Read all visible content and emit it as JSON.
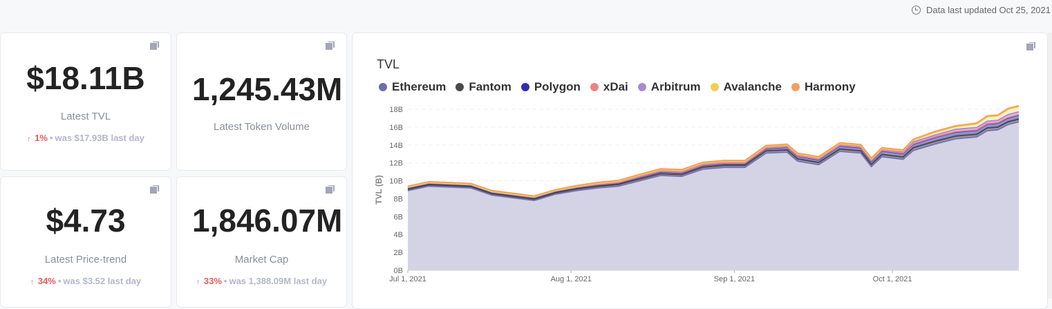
{
  "header": {
    "updated": "Data last updated Oct 25, 2021",
    "icon": "clock-icon"
  },
  "cards": [
    {
      "value": "$18.11B",
      "label": "Latest TVL",
      "change": "1%",
      "was": "was $17.93B",
      "period": "last day"
    },
    {
      "value": "1,245.43M",
      "label": "Latest Token Volume"
    },
    {
      "value": "$4.73",
      "label": "Latest Price-trend",
      "change": "34%",
      "was": "was $3.52",
      "period": "last day"
    },
    {
      "value": "1,846.07M",
      "label": "Market Cap",
      "change": "33%",
      "was": "was 1,388.09M",
      "period": "last day"
    }
  ],
  "chart_data": {
    "type": "area",
    "stacked": true,
    "title": "TVL",
    "ylabel": "TVL (B)",
    "xlabel": "",
    "ylim": [
      0,
      18
    ],
    "yticks": [
      "0B",
      "2B",
      "4B",
      "6B",
      "8B",
      "10B",
      "12B",
      "14B",
      "16B",
      "18B"
    ],
    "xticks": [
      {
        "day": 0,
        "label": "Jul 1, 2021"
      },
      {
        "day": 31,
        "label": "Aug 1, 2021"
      },
      {
        "day": 62,
        "label": "Sep 1, 2021"
      },
      {
        "day": 92,
        "label": "Oct 1, 2021"
      }
    ],
    "x_days": [
      0,
      4,
      8,
      12,
      16,
      20,
      24,
      28,
      32,
      36,
      40,
      44,
      48,
      52,
      56,
      60,
      64,
      68,
      72,
      74,
      78,
      82,
      86,
      88,
      90,
      94,
      96,
      100,
      104,
      108,
      110,
      112,
      114,
      116
    ],
    "series": [
      {
        "name": "Ethereum",
        "color": "#7775b3",
        "fill": "#d4d3e6",
        "values": [
          8.9,
          9.4,
          9.3,
          9.2,
          8.4,
          8.1,
          7.8,
          8.5,
          8.9,
          9.2,
          9.4,
          10.0,
          10.6,
          10.5,
          11.3,
          11.5,
          11.5,
          13.1,
          13.2,
          12.2,
          11.8,
          13.3,
          13.1,
          11.6,
          12.7,
          12.4,
          13.4,
          14.1,
          14.7,
          14.9,
          15.6,
          15.7,
          16.3,
          16.6
        ]
      },
      {
        "name": "Fantom",
        "color": "#4a4a4a",
        "fill": "#9a9aa0",
        "values": [
          0.15,
          0.15,
          0.15,
          0.15,
          0.15,
          0.15,
          0.15,
          0.15,
          0.18,
          0.18,
          0.2,
          0.2,
          0.2,
          0.2,
          0.22,
          0.22,
          0.22,
          0.25,
          0.25,
          0.25,
          0.25,
          0.25,
          0.25,
          0.25,
          0.25,
          0.25,
          0.3,
          0.3,
          0.3,
          0.3,
          0.3,
          0.3,
          0.3,
          0.3
        ]
      },
      {
        "name": "Polygon",
        "color": "#2e2eb0",
        "fill": "#8f8fd6",
        "values": [
          0.15,
          0.15,
          0.15,
          0.15,
          0.15,
          0.15,
          0.15,
          0.15,
          0.15,
          0.15,
          0.15,
          0.2,
          0.2,
          0.2,
          0.2,
          0.2,
          0.2,
          0.25,
          0.3,
          0.3,
          0.3,
          0.35,
          0.35,
          0.35,
          0.4,
          0.4,
          0.4,
          0.45,
          0.45,
          0.45,
          0.45,
          0.45,
          0.45,
          0.45
        ]
      },
      {
        "name": "xDai",
        "color": "#ee8282",
        "fill": "#f5c0c0",
        "values": [
          0.05,
          0.05,
          0.05,
          0.05,
          0.05,
          0.05,
          0.05,
          0.05,
          0.05,
          0.05,
          0.05,
          0.05,
          0.05,
          0.05,
          0.05,
          0.05,
          0.05,
          0.05,
          0.05,
          0.05,
          0.05,
          0.05,
          0.05,
          0.05,
          0.05,
          0.05,
          0.05,
          0.05,
          0.05,
          0.05,
          0.05,
          0.05,
          0.05,
          0.05
        ]
      },
      {
        "name": "Arbitrum",
        "color": "#a98bcf",
        "fill": "#d9cbea",
        "values": [
          0.02,
          0.02,
          0.02,
          0.02,
          0.02,
          0.02,
          0.02,
          0.02,
          0.05,
          0.1,
          0.1,
          0.12,
          0.15,
          0.15,
          0.15,
          0.15,
          0.15,
          0.15,
          0.15,
          0.15,
          0.15,
          0.15,
          0.15,
          0.15,
          0.15,
          0.15,
          0.2,
          0.2,
          0.25,
          0.25,
          0.25,
          0.25,
          0.3,
          0.3
        ]
      },
      {
        "name": "Avalanche",
        "color": "#f2cf50",
        "fill": "#fbf0c6",
        "values": [
          0.03,
          0.03,
          0.03,
          0.03,
          0.03,
          0.03,
          0.03,
          0.03,
          0.03,
          0.03,
          0.05,
          0.05,
          0.05,
          0.05,
          0.05,
          0.05,
          0.05,
          0.05,
          0.05,
          0.05,
          0.05,
          0.05,
          0.05,
          0.05,
          0.05,
          0.1,
          0.2,
          0.3,
          0.3,
          0.4,
          0.5,
          0.5,
          0.6,
          0.6
        ]
      },
      {
        "name": "Harmony",
        "color": "#f0a060",
        "fill": "#f8d2b0",
        "values": [
          0.1,
          0.1,
          0.1,
          0.1,
          0.1,
          0.1,
          0.1,
          0.1,
          0.1,
          0.1,
          0.1,
          0.1,
          0.1,
          0.1,
          0.1,
          0.1,
          0.1,
          0.1,
          0.1,
          0.1,
          0.1,
          0.1,
          0.1,
          0.1,
          0.1,
          0.1,
          0.1,
          0.1,
          0.1,
          0.1,
          0.1,
          0.1,
          0.1,
          0.1
        ]
      }
    ]
  }
}
